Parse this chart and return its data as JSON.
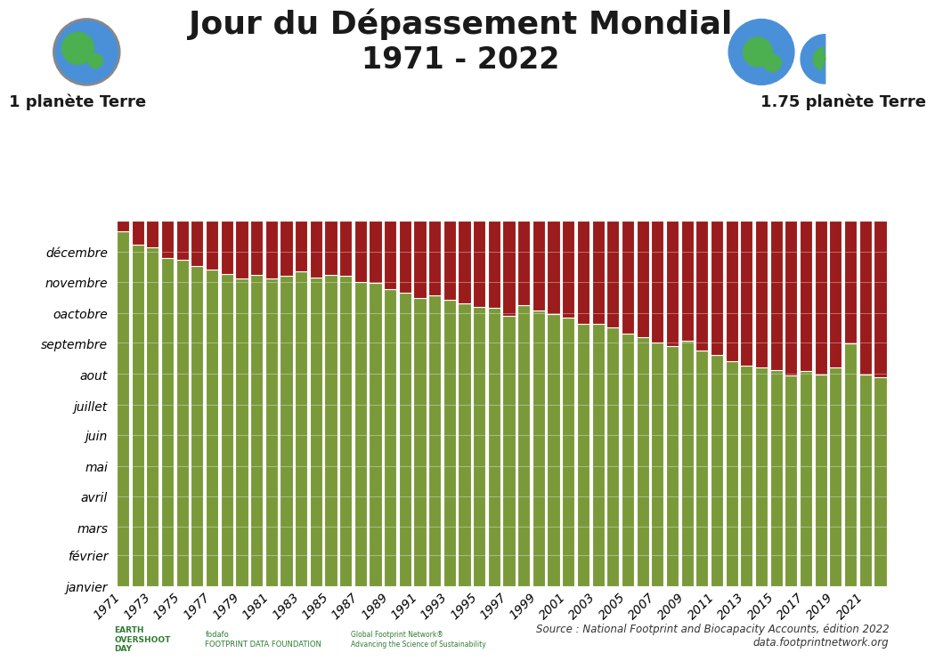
{
  "title_line1": "Jour du Dépassement Mondial",
  "title_line2": "1971 - 2022",
  "subtitle_left": "1 planète Terre",
  "subtitle_right": "1.75 planète Terre",
  "source_text": "Source : National Footprint and Biocapacity Accounts, édition 2022\ndata.footprintnetwork.org",
  "years": [
    1971,
    1972,
    1973,
    1974,
    1975,
    1976,
    1977,
    1978,
    1979,
    1980,
    1981,
    1982,
    1983,
    1984,
    1985,
    1986,
    1987,
    1988,
    1989,
    1990,
    1991,
    1992,
    1993,
    1994,
    1995,
    1996,
    1997,
    1998,
    1999,
    2000,
    2001,
    2002,
    2003,
    2004,
    2005,
    2006,
    2007,
    2008,
    2009,
    2010,
    2011,
    2012,
    2013,
    2014,
    2015,
    2016,
    2017,
    2018,
    2019,
    2020,
    2021,
    2022
  ],
  "overshoot_days": [
    354,
    341,
    338,
    328,
    326,
    320,
    316,
    312,
    307,
    311,
    307,
    310,
    314,
    308,
    311,
    310,
    304,
    303,
    297,
    293,
    288,
    290,
    286,
    282,
    279,
    278,
    270,
    281,
    275,
    272,
    268,
    262,
    262,
    258,
    252,
    249,
    243,
    240,
    245,
    235,
    231,
    225,
    220,
    218,
    216,
    210,
    215,
    211,
    218,
    242,
    211,
    209
  ],
  "bar_color_green": "#7a9a3a",
  "bar_color_red": "#9b1c1c",
  "background_color": "#ffffff",
  "bar_edge_color": "#ffffff",
  "ylabel_months": [
    "janvier",
    "février",
    "mars",
    "avril",
    "mai",
    "juin",
    "juillet",
    "aout",
    "septembre",
    "oactobre",
    "novembre",
    "décembre"
  ],
  "month_days": [
    0,
    31,
    59,
    90,
    120,
    151,
    181,
    212,
    243,
    273,
    304,
    334,
    365
  ],
  "total_days": 365,
  "title_fontsize": 26,
  "subtitle_fontsize": 13,
  "axis_label_fontsize": 11,
  "tick_fontsize": 10,
  "bar_width": 0.85
}
